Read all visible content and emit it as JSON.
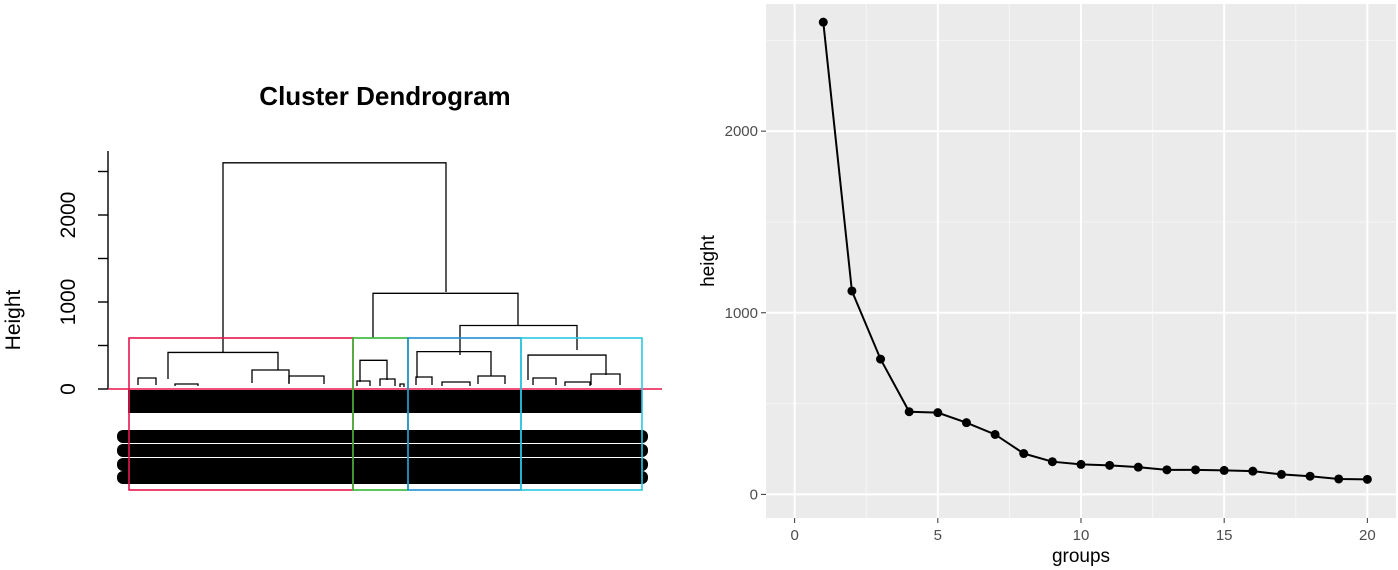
{
  "chart_data": [
    {
      "type": "dendrogram",
      "title": "Cluster Dendrogram",
      "ylabel": "Height",
      "ylim": [
        0,
        2600
      ],
      "yticks": [
        0,
        1000,
        2000
      ],
      "cut_height": 0,
      "clusters": [
        {
          "color": "#e8174f"
        },
        {
          "color": "#33b833"
        },
        {
          "color": "#1e8fd6"
        },
        {
          "color": "#29c8e0"
        }
      ],
      "merges": [
        {
          "height": 2600
        },
        {
          "height": 1100
        },
        {
          "height": 730
        },
        {
          "height": 420
        },
        {
          "height": 430
        },
        {
          "height": 330
        },
        {
          "height": 390
        }
      ]
    },
    {
      "type": "line",
      "xlabel": "groups",
      "ylabel": "height",
      "xlim": [
        -1,
        21
      ],
      "ylim": [
        -130,
        2700
      ],
      "xticks": [
        0,
        5,
        10,
        15,
        20
      ],
      "yticks": [
        0,
        1000,
        2000
      ],
      "x": [
        1,
        2,
        3,
        4,
        5,
        6,
        7,
        8,
        9,
        10,
        11,
        12,
        13,
        14,
        15,
        16,
        17,
        18,
        19,
        20
      ],
      "y": [
        2600,
        1120,
        745,
        455,
        450,
        395,
        330,
        225,
        180,
        165,
        160,
        150,
        135,
        135,
        132,
        128,
        110,
        100,
        85,
        83
      ]
    }
  ]
}
